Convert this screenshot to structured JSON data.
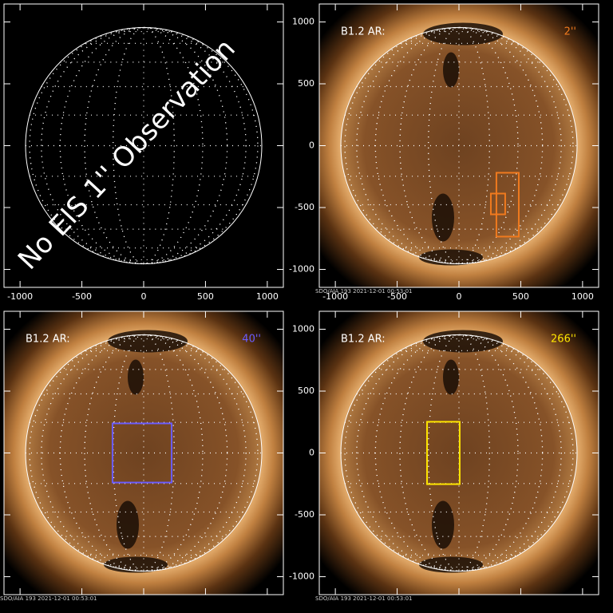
{
  "figure": {
    "xlim": [
      -1130,
      1130
    ],
    "ylim": [
      -1145,
      1145
    ],
    "xticks": [
      -1000,
      -500,
      0,
      500,
      1000
    ],
    "yticks": [
      -1000,
      -500,
      0,
      500,
      1000
    ],
    "panels": [
      {
        "kind": "blank",
        "note": "No EIS 1'' Observation",
        "x_tick_labels": true,
        "y_tick_labels": false
      },
      {
        "kind": "sun",
        "label": "B1.2 AR:",
        "value_label": "2''",
        "color": "#f07a1e",
        "footer": "SDO/AIA 193 2021-12-01 00:53:01",
        "x_tick_labels": true,
        "y_tick_labels": true,
        "boxes": [
          {
            "x": [
              303,
              484
            ],
            "y": [
              -735,
              -219
            ]
          },
          {
            "x": [
              258,
              374
            ],
            "y": [
              -555,
              -387
            ]
          }
        ]
      },
      {
        "kind": "sun",
        "label": "B1.2 AR:",
        "value_label": "40''",
        "color": "#6a5cff",
        "footer": "SDO/AIA 193 2021-12-01 00:53:01",
        "x_tick_labels": false,
        "y_tick_labels": false,
        "boxes": [
          {
            "x": [
              -252,
              226
            ],
            "y": [
              -239,
              239
            ]
          }
        ]
      },
      {
        "kind": "sun",
        "label": "B1.2 AR:",
        "value_label": "266''",
        "color": "#ffe600",
        "footer": "SDO/AIA 193 2021-12-01 00:53:01",
        "x_tick_labels": false,
        "y_tick_labels": true,
        "boxes": [
          {
            "x": [
              -258,
              6
            ],
            "y": [
              -252,
              252
            ]
          }
        ]
      }
    ]
  }
}
